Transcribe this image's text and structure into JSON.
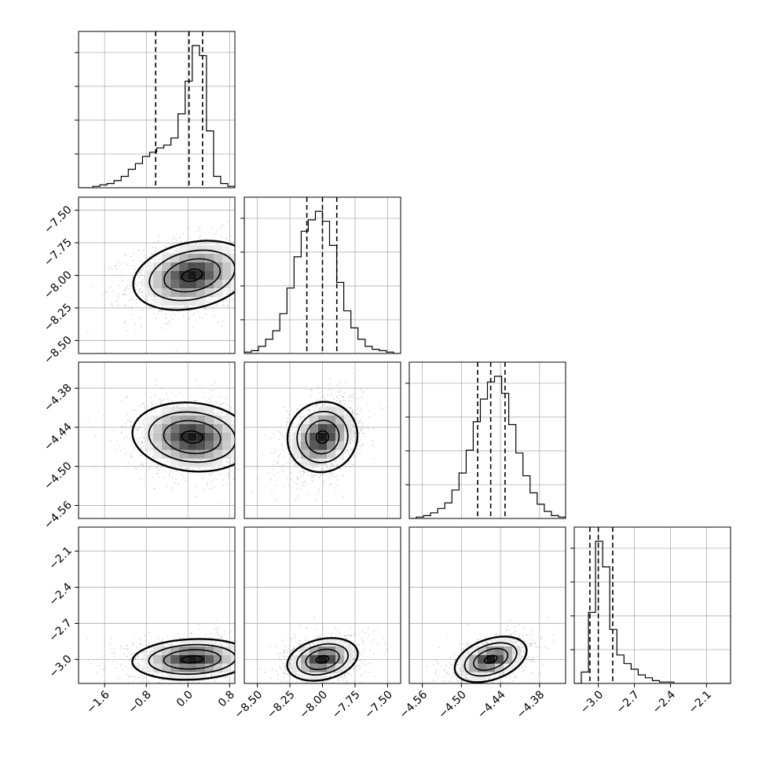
{
  "chart_data": {
    "type": "corner",
    "parameters": [
      {
        "range": [
          -2.1,
          0.9
        ],
        "ticks": [
          -1.6,
          -0.8,
          0.0,
          0.8
        ],
        "tick_labels": [
          "−1.6",
          "−0.8",
          "0.0",
          "0.8"
        ],
        "median": 0.02,
        "q16": -0.62,
        "q84": 0.28
      },
      {
        "range": [
          -8.6,
          -7.4
        ],
        "ticks": [
          -8.5,
          -8.25,
          -8.0,
          -7.75,
          -7.5
        ],
        "tick_labels": [
          "−8.50",
          "−8.25",
          "−8.00",
          "−7.75",
          "−7.50"
        ],
        "median": -8.0,
        "q16": -8.12,
        "q84": -7.89
      },
      {
        "range": [
          -4.58,
          -4.34
        ],
        "ticks": [
          -4.56,
          -4.5,
          -4.44,
          -4.38
        ],
        "tick_labels": [
          "−4.56",
          "−4.50",
          "−4.44",
          "−4.38"
        ],
        "median": -4.455,
        "q16": -4.475,
        "q84": -4.433
      },
      {
        "range": [
          -3.2,
          -1.9
        ],
        "ticks": [
          -3.0,
          -2.7,
          -2.4,
          -2.1
        ],
        "tick_labels": [
          "−3.0",
          "−2.7",
          "−2.4",
          "−2.1"
        ],
        "median": -3.0,
        "q16": -3.07,
        "q84": -2.88
      }
    ],
    "histograms": [
      [
        0.0,
        0.0,
        0.01,
        0.02,
        0.03,
        0.05,
        0.08,
        0.13,
        0.17,
        0.22,
        0.25,
        0.28,
        0.3,
        0.35,
        0.52,
        0.75,
        1.0,
        0.93,
        0.4,
        0.08,
        0.03,
        0.01
      ],
      [
        0.01,
        0.02,
        0.05,
        0.1,
        0.16,
        0.28,
        0.46,
        0.68,
        0.86,
        0.94,
        1.0,
        0.93,
        0.76,
        0.5,
        0.3,
        0.18,
        0.1,
        0.05,
        0.03,
        0.02,
        0.01,
        0.0
      ],
      [
        0.0,
        0.01,
        0.02,
        0.04,
        0.07,
        0.11,
        0.2,
        0.32,
        0.48,
        0.68,
        0.84,
        0.96,
        1.0,
        0.88,
        0.66,
        0.46,
        0.3,
        0.18,
        0.1,
        0.05,
        0.02,
        0.01
      ],
      [
        0.0,
        0.08,
        0.5,
        1.0,
        0.82,
        0.38,
        0.2,
        0.14,
        0.1,
        0.06,
        0.04,
        0.02,
        0.01,
        0.01,
        0.0,
        0.0,
        0.0,
        0.0,
        0.0,
        0.0,
        0.0,
        0.0
      ]
    ],
    "pairs": [
      {
        "x": 0,
        "y": 1,
        "cx": 0.08,
        "cy": -8.0,
        "sx": 0.5,
        "sy": 0.12,
        "corr": 0.25
      },
      {
        "x": 0,
        "y": 2,
        "cx": 0.08,
        "cy": -4.455,
        "sx": 0.5,
        "sy": 0.025,
        "corr": -0.1
      },
      {
        "x": 1,
        "y": 2,
        "cx": -8.0,
        "cy": -4.455,
        "sx": 0.12,
        "sy": 0.025,
        "corr": 0.35
      },
      {
        "x": 0,
        "y": 3,
        "cx": 0.08,
        "cy": -3.0,
        "sx": 0.5,
        "sy": 0.08,
        "corr": 0.1
      },
      {
        "x": 1,
        "y": 3,
        "cx": -8.0,
        "cy": -3.0,
        "sx": 0.12,
        "sy": 0.08,
        "corr": 0.25
      },
      {
        "x": 2,
        "y": 3,
        "cx": -4.455,
        "cy": -3.0,
        "sx": 0.025,
        "sy": 0.08,
        "corr": 0.45
      }
    ],
    "grid": true
  }
}
